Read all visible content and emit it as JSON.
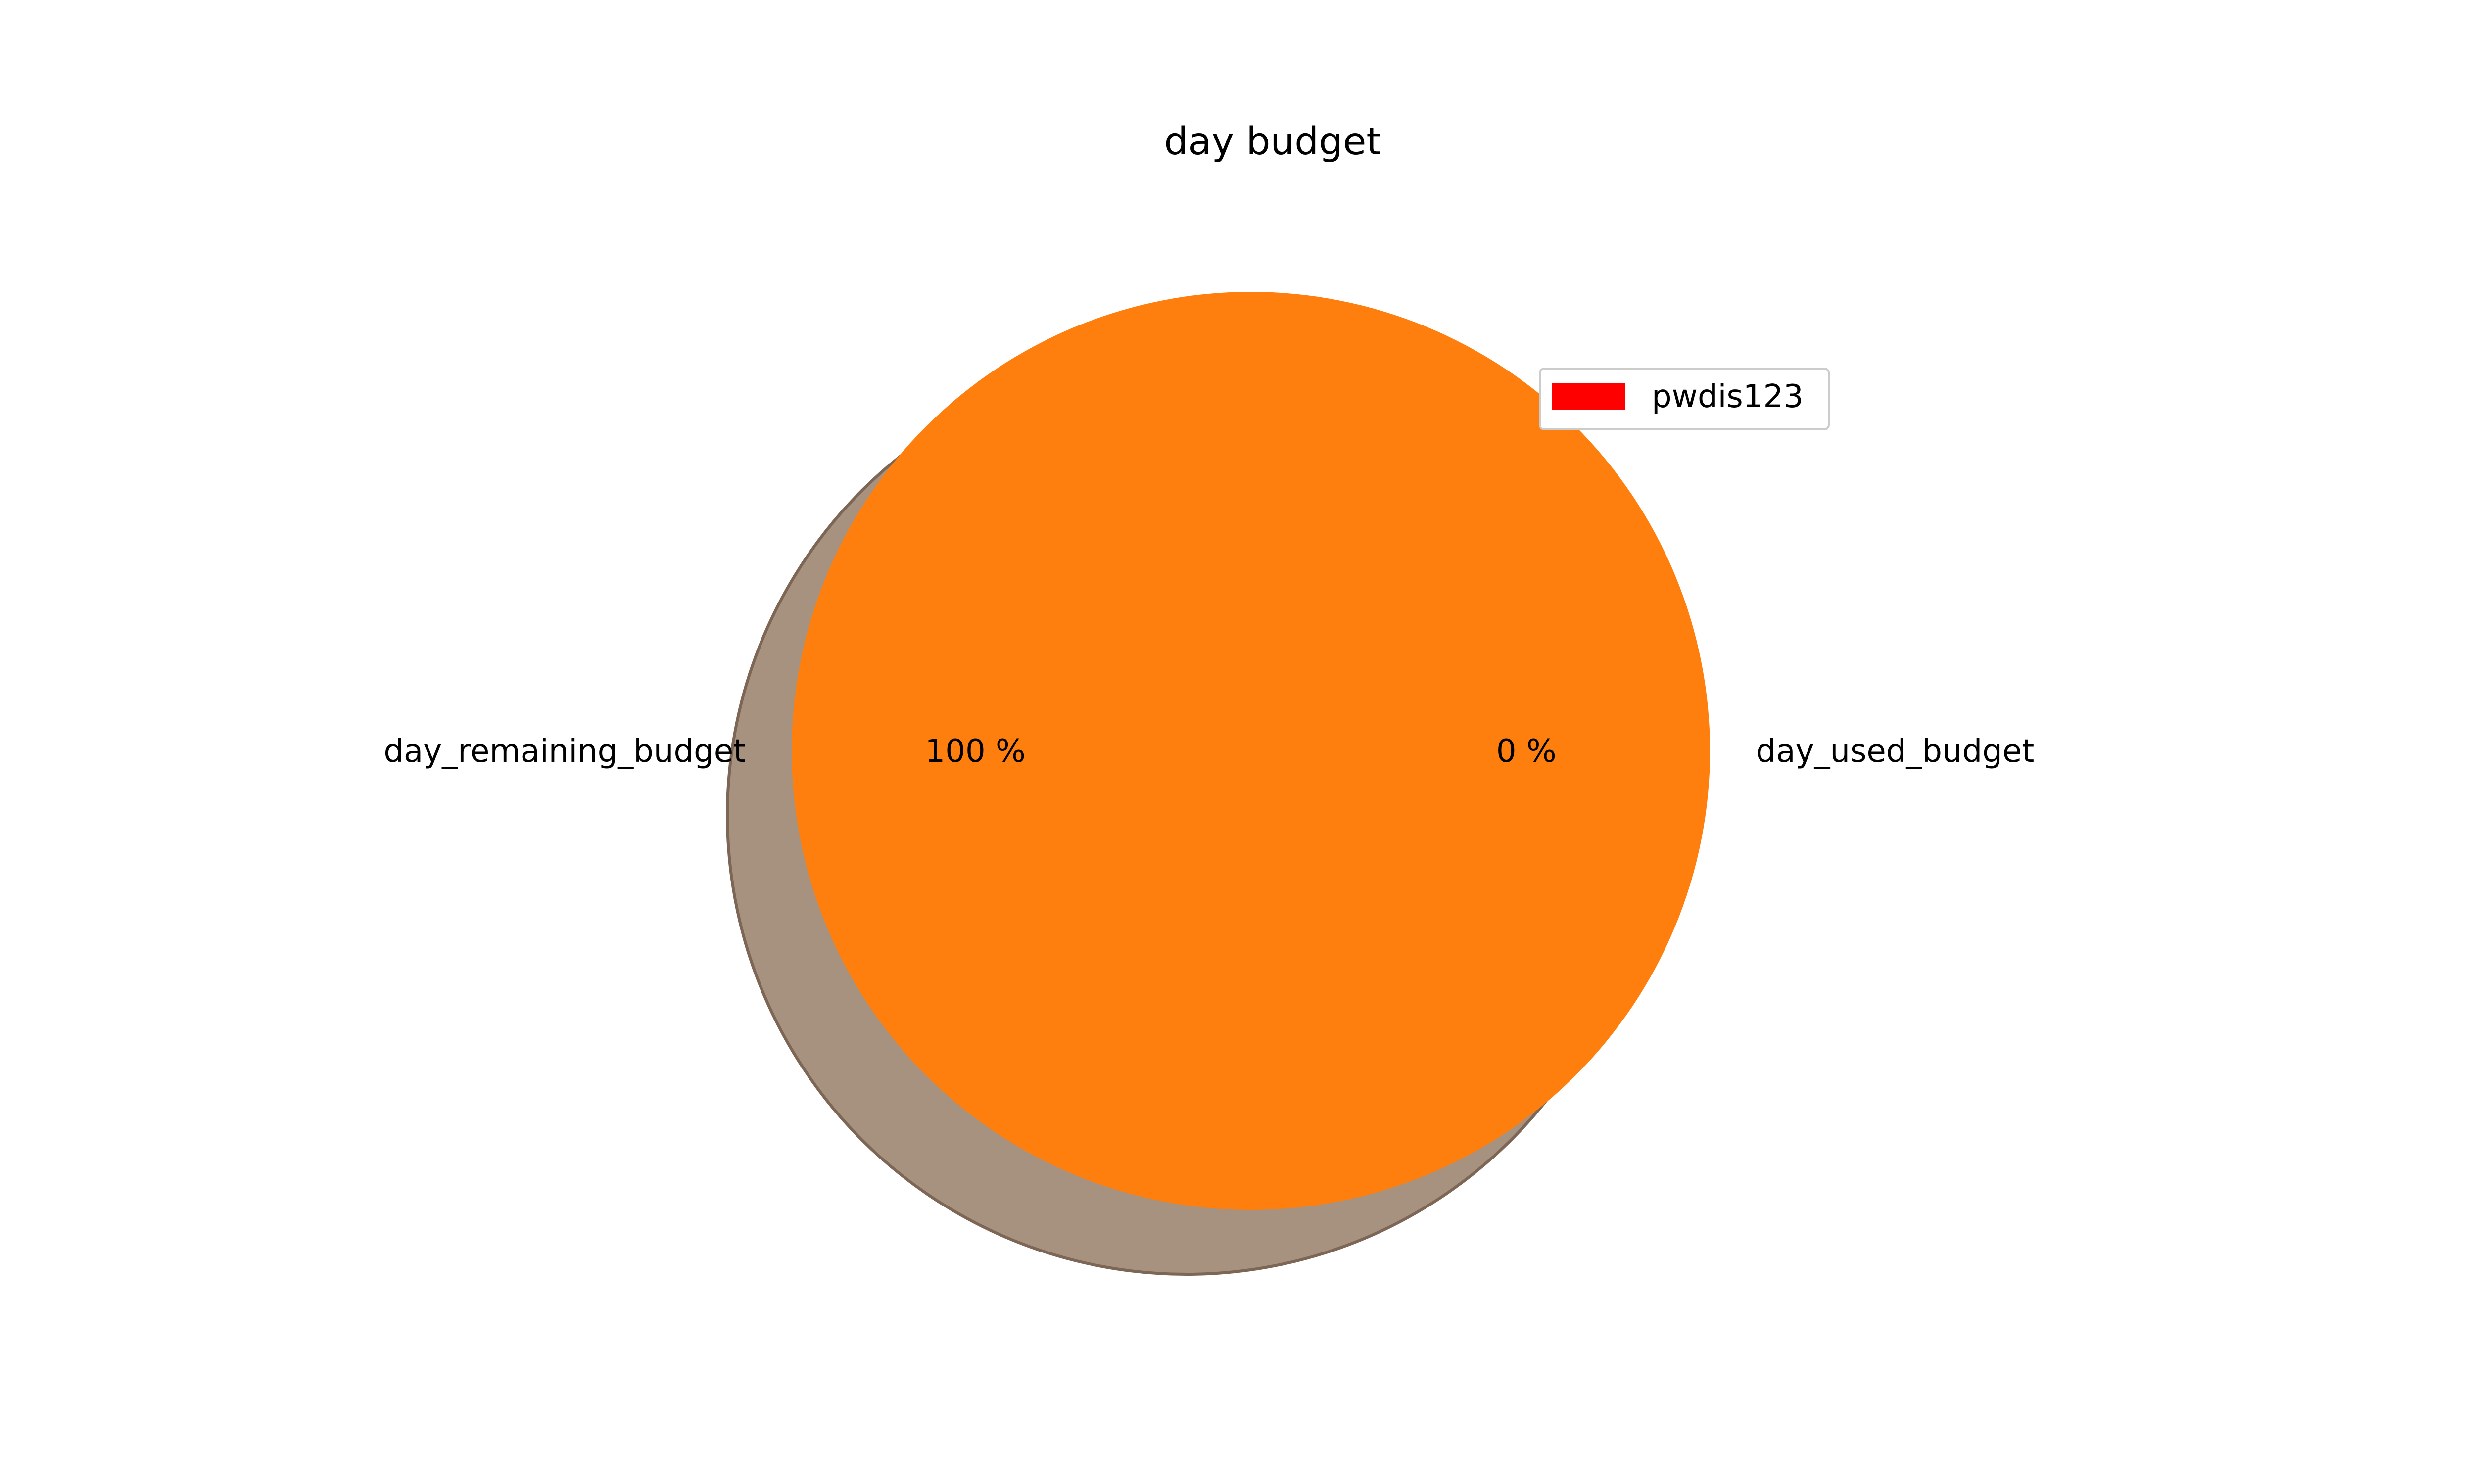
{
  "chart_data": {
    "type": "pie",
    "title": "day budget",
    "slices": [
      {
        "label": "day_remaining_budget",
        "value": 100,
        "pct_label": "100 %",
        "color": "#ff7f0e"
      },
      {
        "label": "day_used_budget",
        "value": 0,
        "pct_label": "0 %",
        "color": "#1f77b4"
      }
    ],
    "shadow": true,
    "shadow_color": "#a6927f",
    "shadow_edge_color": "#7d6655",
    "legend": {
      "placement": "top-right",
      "entries": [
        {
          "label": "pwdis123",
          "color": "#ff0000"
        }
      ]
    }
  }
}
